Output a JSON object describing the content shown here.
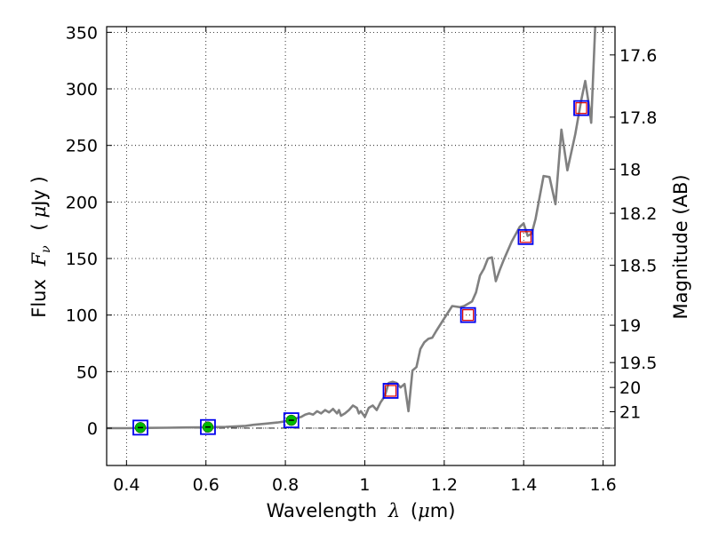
{
  "chart_data": {
    "type": "line",
    "title": "",
    "xlabel": {
      "prefix": "Wavelength",
      "symbol": "λ",
      "unit_open": "(",
      "unit_mu": "μ",
      "unit_rest": "m)"
    },
    "ylabel": {
      "prefix": "Flux",
      "symbol": "F",
      "sub": "ν",
      "unit_open": "(",
      "unit_mu": "μ",
      "unit_rest": "Jy )"
    },
    "y2label": "Magnitude (AB)",
    "xlim": [
      0.35,
      1.63
    ],
    "ylim": [
      -33,
      355
    ],
    "grid": true,
    "x_ticks": [
      {
        "value": 0.4,
        "label": "0.4"
      },
      {
        "value": 0.6,
        "label": "0.6"
      },
      {
        "value": 0.8,
        "label": "0.8"
      },
      {
        "value": 1.0,
        "label": "1"
      },
      {
        "value": 1.2,
        "label": "1.2"
      },
      {
        "value": 1.4,
        "label": "1.4"
      },
      {
        "value": 1.6,
        "label": "1.6"
      }
    ],
    "y_ticks": [
      {
        "value": 0,
        "label": "0"
      },
      {
        "value": 50,
        "label": "50"
      },
      {
        "value": 100,
        "label": "100"
      },
      {
        "value": 150,
        "label": "150"
      },
      {
        "value": 200,
        "label": "200"
      },
      {
        "value": 250,
        "label": "250"
      },
      {
        "value": 300,
        "label": "300"
      },
      {
        "value": 350,
        "label": "350"
      }
    ],
    "y2_ticks": [
      {
        "flux": 330,
        "label": "17.6"
      },
      {
        "flux": 275,
        "label": "17.8"
      },
      {
        "flux": 229,
        "label": "18"
      },
      {
        "flux": 190,
        "label": "18.2"
      },
      {
        "flux": 144,
        "label": "18.5"
      },
      {
        "flux": 91,
        "label": "19"
      },
      {
        "flux": 58,
        "label": "19.5"
      },
      {
        "flux": 36,
        "label": "20"
      },
      {
        "flux": 14.5,
        "label": "21"
      }
    ],
    "colors": {
      "spectrum": "#808080",
      "zero_line": "#000000",
      "observed_marker": "#00bb00",
      "model_box": "#0000ee",
      "nir_marker": "#dd0000"
    },
    "series": [
      {
        "name": "spectrum",
        "kind": "line",
        "points": [
          [
            0.35,
            0
          ],
          [
            0.4,
            0
          ],
          [
            0.45,
            0.2
          ],
          [
            0.5,
            0.4
          ],
          [
            0.55,
            0.6
          ],
          [
            0.6,
            0.8
          ],
          [
            0.65,
            1.2
          ],
          [
            0.7,
            2
          ],
          [
            0.72,
            3
          ],
          [
            0.75,
            4
          ],
          [
            0.78,
            5
          ],
          [
            0.8,
            6
          ],
          [
            0.82,
            8
          ],
          [
            0.84,
            10
          ],
          [
            0.85,
            12
          ],
          [
            0.86,
            13
          ],
          [
            0.87,
            12
          ],
          [
            0.88,
            15
          ],
          [
            0.89,
            13
          ],
          [
            0.9,
            16
          ],
          [
            0.91,
            14
          ],
          [
            0.92,
            17
          ],
          [
            0.93,
            13
          ],
          [
            0.935,
            16
          ],
          [
            0.94,
            11
          ],
          [
            0.95,
            13
          ],
          [
            0.96,
            16
          ],
          [
            0.97,
            20
          ],
          [
            0.98,
            18
          ],
          [
            0.985,
            13
          ],
          [
            0.99,
            15
          ],
          [
            1.0,
            10
          ],
          [
            1.01,
            18
          ],
          [
            1.02,
            20
          ],
          [
            1.03,
            16
          ],
          [
            1.04,
            23
          ],
          [
            1.05,
            28
          ],
          [
            1.06,
            40
          ],
          [
            1.07,
            41
          ],
          [
            1.08,
            40
          ],
          [
            1.09,
            36
          ],
          [
            1.1,
            39
          ],
          [
            1.11,
            15
          ],
          [
            1.12,
            51
          ],
          [
            1.13,
            54
          ],
          [
            1.14,
            70
          ],
          [
            1.15,
            76
          ],
          [
            1.16,
            79
          ],
          [
            1.17,
            80
          ],
          [
            1.18,
            86
          ],
          [
            1.2,
            97
          ],
          [
            1.22,
            108
          ],
          [
            1.24,
            107
          ],
          [
            1.25,
            108
          ],
          [
            1.27,
            112
          ],
          [
            1.28,
            120
          ],
          [
            1.29,
            135
          ],
          [
            1.3,
            141
          ],
          [
            1.31,
            150
          ],
          [
            1.32,
            151
          ],
          [
            1.33,
            130
          ],
          [
            1.34,
            140
          ],
          [
            1.35,
            149
          ],
          [
            1.37,
            165
          ],
          [
            1.39,
            178
          ],
          [
            1.4,
            181
          ],
          [
            1.41,
            170
          ],
          [
            1.42,
            172
          ],
          [
            1.43,
            185
          ],
          [
            1.45,
            223
          ],
          [
            1.465,
            222
          ],
          [
            1.48,
            198
          ],
          [
            1.495,
            264
          ],
          [
            1.51,
            228
          ],
          [
            1.53,
            260
          ],
          [
            1.545,
            290
          ],
          [
            1.555,
            307
          ],
          [
            1.565,
            284
          ],
          [
            1.57,
            270
          ],
          [
            1.58,
            355
          ]
        ]
      },
      {
        "name": "model_photometry",
        "kind": "open_squares",
        "points": [
          [
            0.435,
            0.5
          ],
          [
            0.605,
            1.0
          ],
          [
            0.815,
            7
          ],
          [
            1.065,
            33
          ],
          [
            1.26,
            100
          ],
          [
            1.405,
            169
          ],
          [
            1.545,
            283
          ]
        ]
      },
      {
        "name": "observed_optical",
        "kind": "filled_circles",
        "points": [
          [
            0.435,
            0.5
          ],
          [
            0.605,
            1.0
          ],
          [
            0.815,
            7
          ]
        ]
      },
      {
        "name": "observed_nir",
        "kind": "open_small_squares",
        "points": [
          [
            1.065,
            33
          ],
          [
            1.26,
            100
          ],
          [
            1.405,
            169
          ],
          [
            1.545,
            283
          ]
        ]
      }
    ]
  }
}
